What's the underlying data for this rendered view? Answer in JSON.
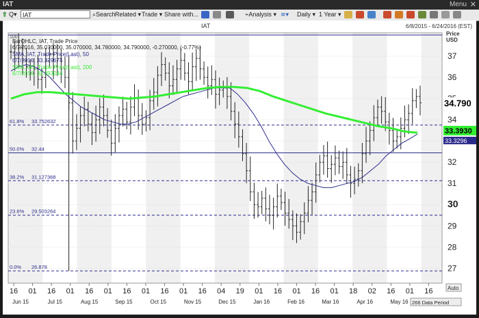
{
  "window": {
    "title": "IAT",
    "menu": "Menu",
    "close": "✕"
  },
  "toolbar": {
    "symbol": "IAT",
    "search": "Search",
    "related": "Related",
    "trade": "Trade",
    "share": "Share with...",
    "analysis": "Analysis",
    "interval": "Daily",
    "range": "1 Year"
  },
  "colors": {
    "sma50": "#2b2b8c",
    "sma200": "#33ee33",
    "price": "#222222",
    "fib": "#2b2b8c",
    "current": "#000000"
  },
  "chart_data": {
    "type": "line",
    "title": "IAT",
    "date_range": "6/8/2015 - 6/24/2016 (EST)",
    "ylabel": "Price USD",
    "ylim": [
      26.3,
      38.1
    ],
    "yticks": [
      27,
      28,
      29,
      30,
      31,
      32,
      33,
      34,
      35,
      36,
      37
    ],
    "tick_labels_x": [
      "16",
      "01",
      "16",
      "01",
      "16",
      "01",
      "16",
      "01",
      "16",
      "01",
      "16",
      "04",
      "19",
      "01",
      "16",
      "01",
      "16",
      "01",
      "18",
      "02",
      "16",
      "01",
      "16"
    ],
    "month_labels": [
      "Jun 15",
      "Jul 15",
      "Aug 15",
      "Sep 15",
      "Oct 15",
      "Nov 15",
      "Dec 15",
      "Jan 16",
      "Feb 16",
      "Mar 16",
      "Apr 16",
      "May 16",
      "Jun 16"
    ],
    "legend": [
      {
        "name": "BarOHLC, IAT, Trade Price",
        "values": "6/7/2016, 35.070000, 35.070000, 34.780000, 34.790000, -0.270000, (-0.77%)"
      },
      {
        "name": "SMA, IAT, Trade Price(Last), 50",
        "values": "6/7/2016, 33.329674"
      },
      {
        "name": "SMA, IAT, Trade Price(Last), 200",
        "values": "6/7/2016, 33.393044"
      }
    ],
    "legend_top_label": "100",
    "fibonacci": [
      {
        "label": "61.8%",
        "value": 33.752632,
        "value_text": "33.752632"
      },
      {
        "label": "50.0%",
        "value": 32.44,
        "value_text": "32.44"
      },
      {
        "label": "38.2%",
        "value": 31.127368,
        "value_text": "31.127368"
      },
      {
        "label": "23.6%",
        "value": 29.503264,
        "value_text": "29.503264"
      },
      {
        "label": "0.0%",
        "value": 26.878,
        "value_text": "26.878"
      },
      {
        "label": "100",
        "value": 38.0,
        "value_text": ""
      }
    ],
    "current_labels": {
      "price": "34.790",
      "sma200": "33.3930",
      "sma50": "33.3296"
    },
    "highlight_tick": "30",
    "footer": {
      "auto": "Auto",
      "period": "266 Data Period"
    },
    "series": [
      {
        "name": "Price",
        "values": [
          37.2,
          36.9,
          37.4,
          36.8,
          36.5,
          36.2,
          36.4,
          35.9,
          36.0,
          36.8,
          37.1,
          36.5,
          36.9,
          36.4,
          36.0,
          34.8,
          33.0,
          33.6,
          34.2,
          34.5,
          33.8,
          33.4,
          34.0,
          34.6,
          34.2,
          33.5,
          32.9,
          33.6,
          34.2,
          34.5,
          33.9,
          34.6,
          35.0,
          34.2,
          33.8,
          34.1,
          34.9,
          35.3,
          36.1,
          36.6,
          36.2,
          35.6,
          35.9,
          36.4,
          36.8,
          36.2,
          35.8,
          36.5,
          36.9,
          36.4,
          36.0,
          35.6,
          35.9,
          35.2,
          35.4,
          35.5,
          35.1,
          34.4,
          33.8,
          33.2,
          32.4,
          31.6,
          30.6,
          30.0,
          29.9,
          30.3,
          29.8,
          29.5,
          29.9,
          30.4,
          30.1,
          29.6,
          29.3,
          29.0,
          28.7,
          29.2,
          29.6,
          30.2,
          30.6,
          31.4,
          32.0,
          32.3,
          31.7,
          31.9,
          32.2,
          31.8,
          32.0,
          31.4,
          31.0,
          31.2,
          31.6,
          32.4,
          33.0,
          33.5,
          34.1,
          34.6,
          34.4,
          33.9,
          33.5,
          33.0,
          33.2,
          33.6,
          34.0,
          34.3,
          34.9,
          35.1,
          34.8
        ]
      },
      {
        "name": "SMA 50",
        "values": [
          36.3,
          36.5,
          36.6,
          36.5,
          36.3,
          36.0,
          35.6,
          35.2,
          34.9,
          34.6,
          34.4,
          34.2,
          34.0,
          33.9,
          33.8,
          33.8,
          33.9,
          34.1,
          34.3,
          34.5,
          34.7,
          34.9,
          35.1,
          35.2,
          35.3,
          35.4,
          35.5,
          35.5,
          35.5,
          35.2,
          34.8,
          34.3,
          33.7,
          33.0,
          32.4,
          31.9,
          31.5,
          31.2,
          31.0,
          30.9,
          30.8,
          30.8,
          30.9,
          31.0,
          31.1,
          31.3,
          31.6,
          31.9,
          32.3,
          32.6,
          32.9,
          33.1,
          33.33
        ]
      },
      {
        "name": "SMA 200",
        "values": [
          35.0,
          35.2,
          35.3,
          35.3,
          35.25,
          35.2,
          35.15,
          35.1,
          35.05,
          35.0,
          35.05,
          35.1,
          35.2,
          35.3,
          35.4,
          35.5,
          35.55,
          35.55,
          35.5,
          35.35,
          35.1,
          34.9,
          34.7,
          34.5,
          34.3,
          34.15,
          34.0,
          33.85,
          33.7,
          33.6,
          33.45,
          33.39
        ]
      }
    ]
  }
}
